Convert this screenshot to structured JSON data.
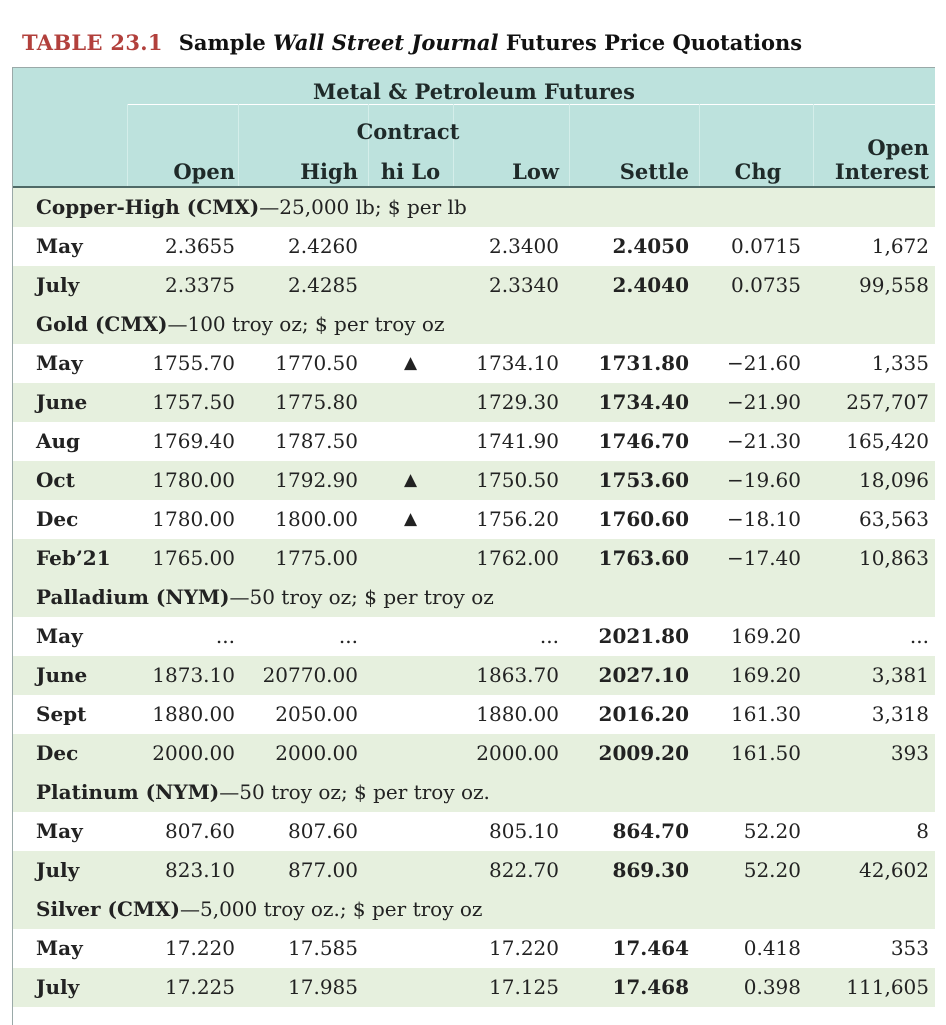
{
  "caption": {
    "label": "TABLE 23.1",
    "text_before": "Sample ",
    "text_italic": "Wall Street Journal",
    "text_after": " Futures Price Quotations"
  },
  "header": {
    "title": "Metal & Petroleum Futures",
    "contract": "Contract",
    "columns": {
      "open": "Open",
      "high": "High",
      "hilo": "hi Lo",
      "low": "Low",
      "settle": "Settle",
      "chg": "Chg",
      "oi_line1": "Open",
      "oi_line2": "Interest"
    }
  },
  "groups": [
    {
      "name": "Copper-High (CMX)",
      "spec": "—25,000 lb; $ per lb",
      "rows": [
        {
          "month": "May",
          "open": "2.3655",
          "high": "2.4260",
          "hilo": "",
          "low": "2.3400",
          "settle": "2.4050",
          "chg": "0.0715",
          "oi": "1,672"
        },
        {
          "month": "July",
          "open": "2.3375",
          "high": "2.4285",
          "hilo": "",
          "low": "2.3340",
          "settle": "2.4040",
          "chg": "0.0735",
          "oi": "99,558"
        }
      ]
    },
    {
      "name": "Gold (CMX)",
      "spec": "—100 troy oz; $ per troy oz",
      "rows": [
        {
          "month": "May",
          "open": "1755.70",
          "high": "1770.50",
          "hilo": "▲",
          "low": "1734.10",
          "settle": "1731.80",
          "chg": "−21.60",
          "oi": "1,335"
        },
        {
          "month": "June",
          "open": "1757.50",
          "high": "1775.80",
          "hilo": "",
          "low": "1729.30",
          "settle": "1734.40",
          "chg": "−21.90",
          "oi": "257,707"
        },
        {
          "month": "Aug",
          "open": "1769.40",
          "high": "1787.50",
          "hilo": "",
          "low": "1741.90",
          "settle": "1746.70",
          "chg": "−21.30",
          "oi": "165,420"
        },
        {
          "month": "Oct",
          "open": "1780.00",
          "high": "1792.90",
          "hilo": "▲",
          "low": "1750.50",
          "settle": "1753.60",
          "chg": "−19.60",
          "oi": "18,096"
        },
        {
          "month": "Dec",
          "open": "1780.00",
          "high": "1800.00",
          "hilo": "▲",
          "low": "1756.20",
          "settle": "1760.60",
          "chg": "−18.10",
          "oi": "63,563"
        },
        {
          "month": "Feb’21",
          "open": "1765.00",
          "high": "1775.00",
          "hilo": "",
          "low": "1762.00",
          "settle": "1763.60",
          "chg": "−17.40",
          "oi": "10,863"
        }
      ]
    },
    {
      "name": "Palladium (NYM)",
      "spec": "—50 troy oz; $ per troy oz",
      "rows": [
        {
          "month": "May",
          "open": "...",
          "high": "...",
          "hilo": "",
          "low": "...",
          "settle": "2021.80",
          "chg": "169.20",
          "oi": "..."
        },
        {
          "month": "June",
          "open": "1873.10",
          "high": "20770.00",
          "hilo": "",
          "low": "1863.70",
          "settle": "2027.10",
          "chg": "169.20",
          "oi": "3,381"
        },
        {
          "month": "Sept",
          "open": "1880.00",
          "high": "2050.00",
          "hilo": "",
          "low": "1880.00",
          "settle": "2016.20",
          "chg": "161.30",
          "oi": "3,318"
        },
        {
          "month": "Dec",
          "open": "2000.00",
          "high": "2000.00",
          "hilo": "",
          "low": "2000.00",
          "settle": "2009.20",
          "chg": "161.50",
          "oi": "393"
        }
      ]
    },
    {
      "name": "Platinum (NYM)",
      "spec": "—50 troy oz; $ per troy oz.",
      "rows": [
        {
          "month": "May",
          "open": "807.60",
          "high": "807.60",
          "hilo": "",
          "low": "805.10",
          "settle": "864.70",
          "chg": "52.20",
          "oi": "8"
        },
        {
          "month": "July",
          "open": "823.10",
          "high": "877.00",
          "hilo": "",
          "low": "822.70",
          "settle": "869.30",
          "chg": "52.20",
          "oi": "42,602"
        }
      ]
    },
    {
      "name": "Silver (CMX)",
      "spec": "—5,000 troy oz.; $ per troy oz",
      "rows": [
        {
          "month": "May",
          "open": "17.220",
          "high": "17.585",
          "hilo": "",
          "low": "17.220",
          "settle": "17.464",
          "chg": "0.418",
          "oi": "353"
        },
        {
          "month": "July",
          "open": "17.225",
          "high": "17.985",
          "hilo": "",
          "low": "17.125",
          "settle": "17.468",
          "chg": "0.398",
          "oi": "111,605"
        }
      ]
    }
  ]
}
